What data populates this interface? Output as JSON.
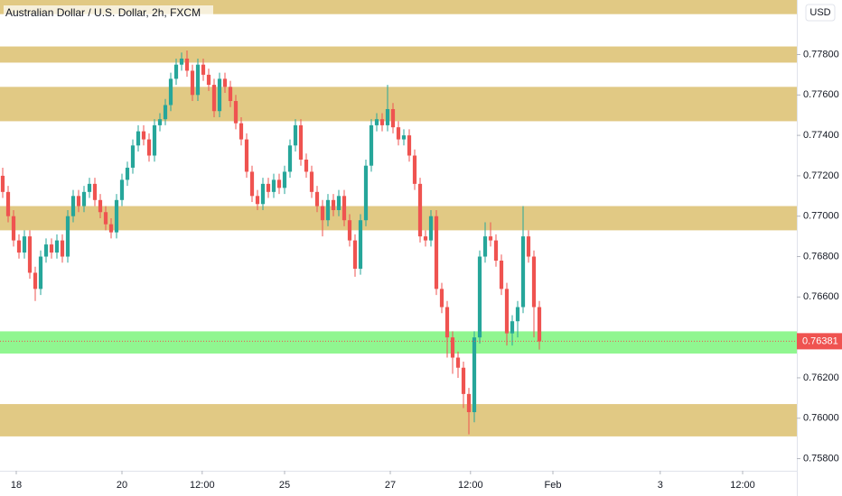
{
  "chart_data": {
    "type": "candlestick",
    "title": "Australian Dollar / U.S. Dollar, 2h, FXCM",
    "currency": "USD",
    "up_color": "#26a69a",
    "down_color": "#ef5350",
    "ylim": [
      0.7574,
      0.7807
    ],
    "yticks": [
      {
        "value": 0.758,
        "label": "0.75800"
      },
      {
        "value": 0.76,
        "label": "0.76000"
      },
      {
        "value": 0.762,
        "label": "0.76200"
      },
      {
        "value": 0.766,
        "label": "0.76600"
      },
      {
        "value": 0.768,
        "label": "0.76800"
      },
      {
        "value": 0.77,
        "label": "0.77000"
      },
      {
        "value": 0.772,
        "label": "0.77200"
      },
      {
        "value": 0.774,
        "label": "0.77400"
      },
      {
        "value": 0.776,
        "label": "0.77600"
      },
      {
        "value": 0.778,
        "label": "0.77800"
      }
    ],
    "xlim": [
      -0.5,
      146.5
    ],
    "xticks": [
      {
        "value": 2.5,
        "label": "18"
      },
      {
        "value": 22,
        "label": "20"
      },
      {
        "value": 36.8,
        "label": "12:00"
      },
      {
        "value": 52,
        "label": "25"
      },
      {
        "value": 71.5,
        "label": "27"
      },
      {
        "value": 86.3,
        "label": "12:00"
      },
      {
        "value": 101.5,
        "label": "Feb"
      },
      {
        "value": 121.3,
        "label": "3"
      },
      {
        "value": 136.5,
        "label": "12:00"
      }
    ],
    "last_price": {
      "value": 0.76381,
      "label": "0.76381",
      "color": "#ef5350"
    },
    "zones": [
      {
        "low": 0.78,
        "high": 0.7807,
        "color": "#dcbf6e"
      },
      {
        "low": 0.7776,
        "high": 0.7784,
        "color": "#dcbf6e"
      },
      {
        "low": 0.7747,
        "high": 0.7764,
        "color": "#dcbf6e"
      },
      {
        "low": 0.7693,
        "high": 0.7705,
        "color": "#dcbf6e"
      },
      {
        "low": 0.7632,
        "high": 0.7643,
        "color": "#7cf57c"
      },
      {
        "low": 0.7591,
        "high": 0.7607,
        "color": "#dcbf6e"
      }
    ],
    "open": [
      0.772,
      0.7712,
      0.77,
      0.7688,
      0.7682,
      0.769,
      0.7672,
      0.7664,
      0.768,
      0.7686,
      0.7682,
      0.7688,
      0.768,
      0.77,
      0.771,
      0.7705,
      0.7712,
      0.7716,
      0.7708,
      0.7702,
      0.7696,
      0.7692,
      0.7708,
      0.7718,
      0.7724,
      0.7735,
      0.7742,
      0.7738,
      0.773,
      0.7745,
      0.7748,
      0.7755,
      0.7768,
      0.7775,
      0.7778,
      0.7772,
      0.776,
      0.7775,
      0.777,
      0.7765,
      0.7752,
      0.7768,
      0.7764,
      0.7757,
      0.7746,
      0.7738,
      0.7722,
      0.771,
      0.7706,
      0.7716,
      0.7712,
      0.7718,
      0.7714,
      0.7722,
      0.7735,
      0.7745,
      0.7728,
      0.7722,
      0.7712,
      0.7705,
      0.7698,
      0.7708,
      0.7703,
      0.771,
      0.7698,
      0.7688,
      0.7674,
      0.7698,
      0.7725,
      0.7745,
      0.7748,
      0.7745,
      0.7753,
      0.7744,
      0.7738,
      0.774,
      0.773,
      0.7716,
      0.769,
      0.7688,
      0.77,
      0.7664,
      0.7655,
      0.764,
      0.763,
      0.7625,
      0.7612,
      0.7603,
      0.764,
      0.768,
      0.769,
      0.7688,
      0.7678,
      0.7664,
      0.7642,
      0.7648,
      0.7655,
      0.769,
      0.768,
      0.7655
    ],
    "high": [
      0.7724,
      0.7715,
      0.7703,
      0.7691,
      0.7693,
      0.7693,
      0.7675,
      0.7683,
      0.7689,
      0.7689,
      0.7691,
      0.7691,
      0.7703,
      0.7713,
      0.7713,
      0.7715,
      0.7719,
      0.7719,
      0.7711,
      0.7705,
      0.7699,
      0.7711,
      0.7721,
      0.7727,
      0.7738,
      0.7745,
      0.7745,
      0.7741,
      0.7748,
      0.7751,
      0.7758,
      0.7771,
      0.7778,
      0.7781,
      0.7782,
      0.7775,
      0.7778,
      0.7778,
      0.7773,
      0.7768,
      0.7771,
      0.7771,
      0.7767,
      0.776,
      0.7749,
      0.7741,
      0.7725,
      0.7713,
      0.7719,
      0.7719,
      0.7721,
      0.7721,
      0.7725,
      0.7738,
      0.7748,
      0.7748,
      0.7731,
      0.7725,
      0.7715,
      0.7708,
      0.7711,
      0.7711,
      0.7713,
      0.7713,
      0.7701,
      0.7691,
      0.7701,
      0.7728,
      0.7748,
      0.7751,
      0.7751,
      0.7765,
      0.7756,
      0.7747,
      0.7743,
      0.7743,
      0.7733,
      0.7719,
      0.7693,
      0.7703,
      0.7703,
      0.7667,
      0.7658,
      0.7643,
      0.7633,
      0.7628,
      0.7615,
      0.7643,
      0.7683,
      0.7697,
      0.7697,
      0.7691,
      0.7681,
      0.7667,
      0.7651,
      0.7658,
      0.7705,
      0.7693,
      0.7683,
      0.7658
    ],
    "low": [
      0.7709,
      0.7697,
      0.7685,
      0.7679,
      0.7679,
      0.7669,
      0.7658,
      0.7661,
      0.7677,
      0.7679,
      0.7679,
      0.7677,
      0.7677,
      0.7697,
      0.7702,
      0.7702,
      0.7709,
      0.7705,
      0.7699,
      0.7693,
      0.7689,
      0.7689,
      0.7705,
      0.7715,
      0.7721,
      0.7732,
      0.7735,
      0.7727,
      0.7727,
      0.7742,
      0.7745,
      0.7752,
      0.7765,
      0.7772,
      0.7769,
      0.7757,
      0.7757,
      0.7767,
      0.7762,
      0.7749,
      0.7749,
      0.7761,
      0.7754,
      0.7743,
      0.7735,
      0.7719,
      0.7707,
      0.7703,
      0.7703,
      0.7709,
      0.7709,
      0.7711,
      0.7711,
      0.7719,
      0.7732,
      0.7725,
      0.7719,
      0.7709,
      0.7702,
      0.769,
      0.7695,
      0.77,
      0.77,
      0.7695,
      0.7685,
      0.767,
      0.7671,
      0.7695,
      0.7722,
      0.7742,
      0.7742,
      0.7742,
      0.7741,
      0.7735,
      0.7735,
      0.7727,
      0.7713,
      0.7687,
      0.7685,
      0.7685,
      0.7661,
      0.7652,
      0.763,
      0.7622,
      0.762,
      0.7605,
      0.7592,
      0.7598,
      0.7637,
      0.7677,
      0.7685,
      0.7675,
      0.7661,
      0.7636,
      0.7636,
      0.764,
      0.7652,
      0.7677,
      0.764,
      0.7634
    ],
    "close": [
      0.7712,
      0.77,
      0.7688,
      0.7682,
      0.769,
      0.7672,
      0.7664,
      0.768,
      0.7686,
      0.7682,
      0.7688,
      0.768,
      0.77,
      0.771,
      0.7705,
      0.7712,
      0.7716,
      0.7708,
      0.7702,
      0.7696,
      0.7692,
      0.7708,
      0.7718,
      0.7724,
      0.7735,
      0.7742,
      0.7738,
      0.773,
      0.7745,
      0.7748,
      0.7755,
      0.7768,
      0.7775,
      0.7778,
      0.7772,
      0.776,
      0.7775,
      0.777,
      0.7765,
      0.7752,
      0.7768,
      0.7764,
      0.7757,
      0.7746,
      0.7738,
      0.7722,
      0.771,
      0.7706,
      0.7716,
      0.7712,
      0.7718,
      0.7714,
      0.7722,
      0.7735,
      0.7745,
      0.7728,
      0.7722,
      0.7712,
      0.7705,
      0.7698,
      0.7708,
      0.7703,
      0.771,
      0.7698,
      0.7688,
      0.7674,
      0.7698,
      0.7725,
      0.7745,
      0.7748,
      0.7745,
      0.7753,
      0.7744,
      0.7738,
      0.774,
      0.773,
      0.7716,
      0.769,
      0.7688,
      0.77,
      0.7664,
      0.7655,
      0.764,
      0.763,
      0.7625,
      0.7612,
      0.7603,
      0.764,
      0.768,
      0.769,
      0.7688,
      0.7678,
      0.7664,
      0.7642,
      0.7648,
      0.7655,
      0.769,
      0.768,
      0.7655,
      0.7638
    ]
  }
}
